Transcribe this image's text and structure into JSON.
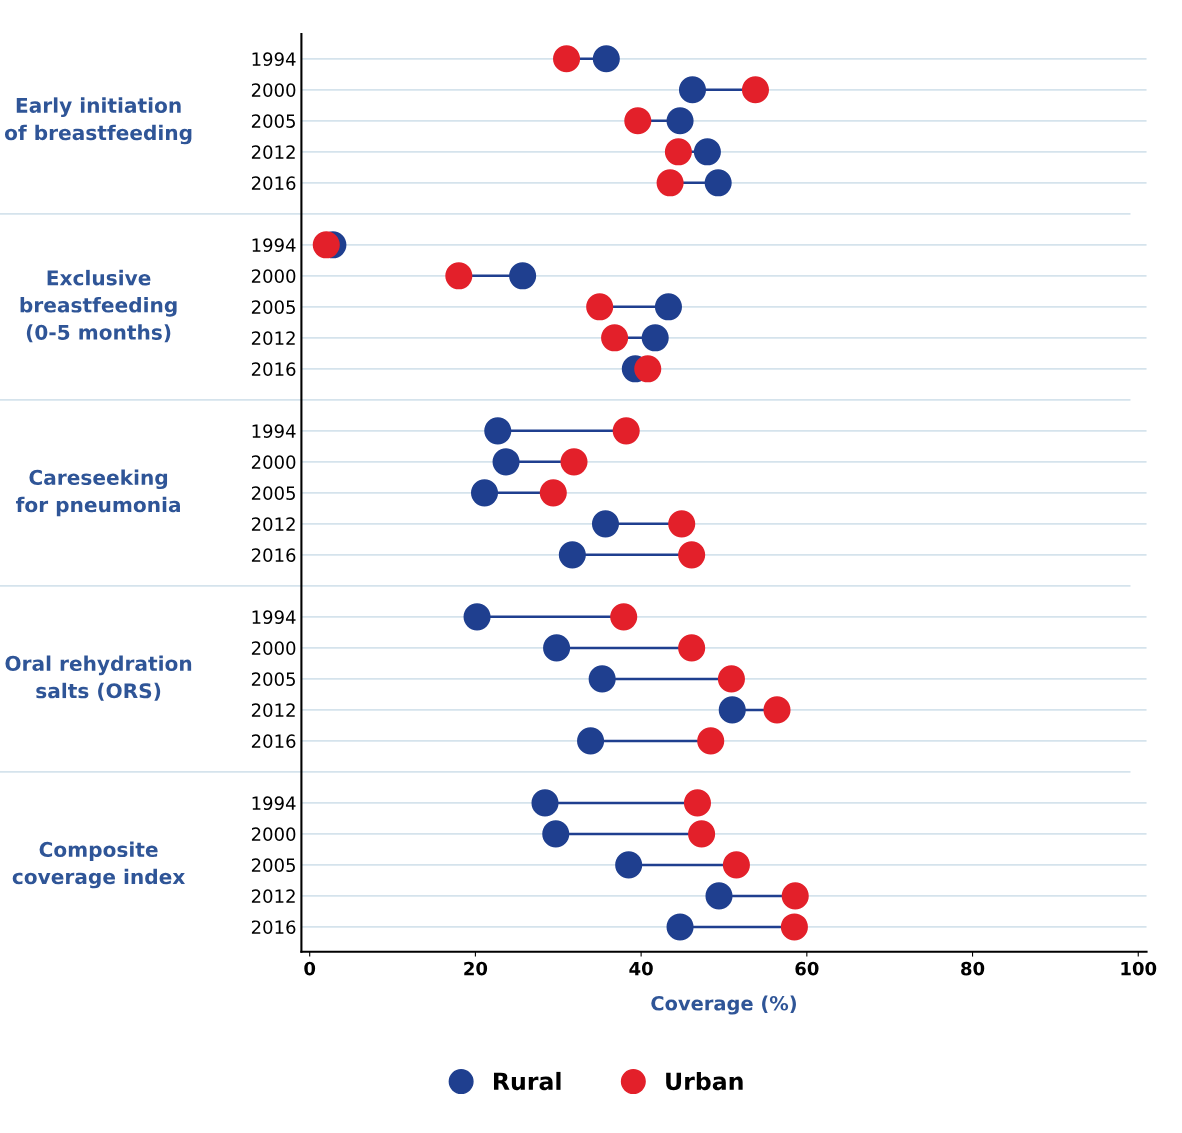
{
  "chart_data": {
    "type": "scatter",
    "orientation": "horizontal",
    "categories": [
      "1994",
      "2000",
      "2005",
      "2012",
      "2016",
      null,
      "1994",
      "2000",
      "2005",
      "2012",
      "2016",
      null,
      "1994",
      "2000",
      "2005",
      "2012",
      "2016",
      null,
      "1994",
      "2000",
      "2005",
      "2012",
      "2016",
      null,
      "1994",
      "2000",
      "2005",
      "2012",
      "2016"
    ],
    "series": [
      {
        "name": "Rural",
        "color": "#1f3f8f",
        "values": [
          35.8,
          46.2,
          44.7,
          48.0,
          49.3,
          null,
          2.8,
          25.7,
          43.3,
          41.7,
          39.3,
          null,
          22.7,
          23.7,
          21.1,
          35.7,
          31.7,
          null,
          20.2,
          29.8,
          35.3,
          51.0,
          33.9,
          null,
          28.4,
          29.7,
          38.5,
          49.4,
          44.7
        ]
      },
      {
        "name": "Urban",
        "color": "#e3202a",
        "values": [
          31.0,
          53.8,
          39.6,
          44.5,
          43.5,
          null,
          2.0,
          18.0,
          35.0,
          36.8,
          40.8,
          null,
          38.2,
          31.9,
          29.4,
          44.9,
          46.1,
          null,
          37.9,
          46.1,
          50.9,
          56.4,
          48.4,
          null,
          46.8,
          47.3,
          51.5,
          58.6,
          58.5
        ]
      }
    ],
    "annotations": [
      "Early initiation\nof breastfeeding",
      "Exclusive\nbreastfeeding\n(0-5 months)",
      "Careseeking\nfor pneumonia",
      "Oral rehydration\nsalts (ORS)",
      "Composite\ncoverage index"
    ],
    "xlabel": "Coverage (%)",
    "xlim": [
      -1,
      101
    ],
    "xticks": [
      0,
      20,
      40,
      60,
      80,
      100
    ],
    "grid": "y",
    "marker": "circle",
    "legend": "bottom"
  }
}
